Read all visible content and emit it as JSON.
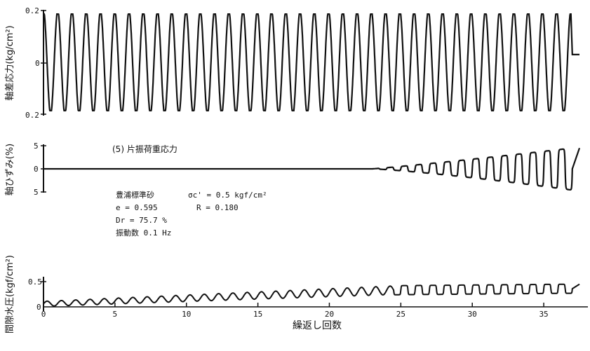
{
  "chart_data": [
    {
      "type": "line",
      "ylabel": "軸差応力(kg/cm²)",
      "y_ticks": [
        "0.2",
        "0",
        "0.2"
      ],
      "ylim": [
        -0.2,
        0.2
      ],
      "xlim": [
        0,
        37.5
      ],
      "series": [
        {
          "cycles": 37,
          "amplitude": 0.19,
          "end_value": 0.03
        }
      ]
    },
    {
      "type": "line",
      "subtitle": "(5) 片振荷重応力",
      "ylabel": "軸ひずみ(%)",
      "y_ticks": [
        "5",
        "0",
        "5"
      ],
      "ylim": [
        -5,
        5
      ],
      "xlim": [
        0,
        37.5
      ],
      "series": [
        {
          "onset_cycle": 23,
          "peak_positive": 4.5,
          "peak_negative": -4.6
        }
      ],
      "annotation": [
        "豊浦標準砂",
        "e = 0.595",
        "Dr = 75.7 %",
        "振動数 0.1 Hz",
        "σc' = 0.5 kgf/cm²",
        "R = 0.180"
      ]
    },
    {
      "type": "line",
      "ylabel": "間隙水圧(kgf/cm²)",
      "xlabel": "繰返し回数",
      "y_ticks": [
        "0.5",
        "0"
      ],
      "ylim": [
        0,
        0.5
      ],
      "xlim": [
        0,
        37.5
      ],
      "x_ticks": [
        "0",
        "5",
        "10",
        "15",
        "20",
        "25",
        "30",
        "35"
      ],
      "series": [
        {
          "start_mean": 0.06,
          "plateau_mean": 0.33,
          "end_value": 0.45
        }
      ]
    }
  ]
}
